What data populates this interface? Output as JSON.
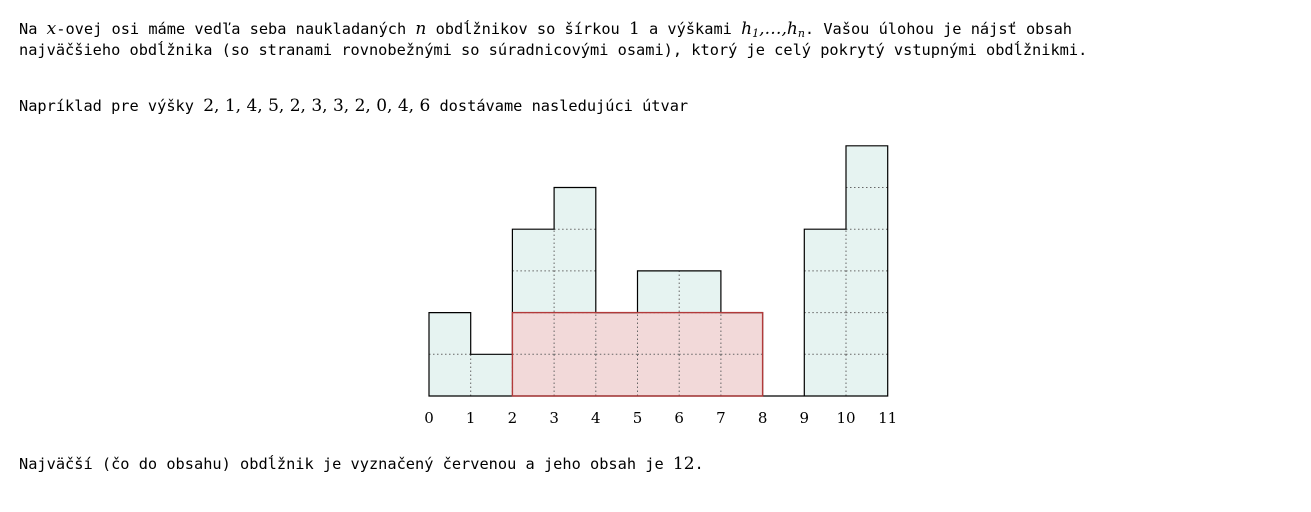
{
  "intro": {
    "s1": "Na ",
    "m1": "x",
    "s2": "-ovej osi máme vedľa seba naukladaných ",
    "m2": "n",
    "s3": " obdĺžnikov so šírkou ",
    "n1": "1",
    "s4": " a výškami ",
    "m3": "h",
    "sub1": "1",
    "m4": ",…,",
    "m5": "h",
    "sub2": "n",
    "s5": ". Vašou úlohou je nájsť obsah",
    "line2": "najväčšieho obdĺžnika (so stranami rovnobežnými so súradnicovými osami), ktorý je celý pokrytý vstupnými obdĺžnikmi."
  },
  "example": {
    "prefix": "Napríklad pre výšky ",
    "heights_text": "2, 1, 4, 5, 2, 3, 3, 2, 0, 4, 6",
    "suffix": " dostávame nasledujúci útvar"
  },
  "figure": {
    "heights": [
      2,
      1,
      4,
      5,
      2,
      3,
      3,
      2,
      0,
      4,
      6
    ],
    "axis_labels": [
      "0",
      "1",
      "2",
      "3",
      "4",
      "5",
      "6",
      "7",
      "8",
      "9",
      "10",
      "11"
    ],
    "highlight": {
      "from": 2,
      "to": 8,
      "height": 2
    },
    "colors": {
      "fill": "#e6f3f1",
      "highlight_fill": "#f2d9d9",
      "highlight_stroke": "#b23a3a",
      "outline": "#000000",
      "grid": "#666666"
    }
  },
  "result": {
    "prefix": "Najväčší (čo do obsahu) obdĺžnik je vyznačený červenou a jeho obsah je ",
    "value": "12",
    "suffix": "."
  }
}
